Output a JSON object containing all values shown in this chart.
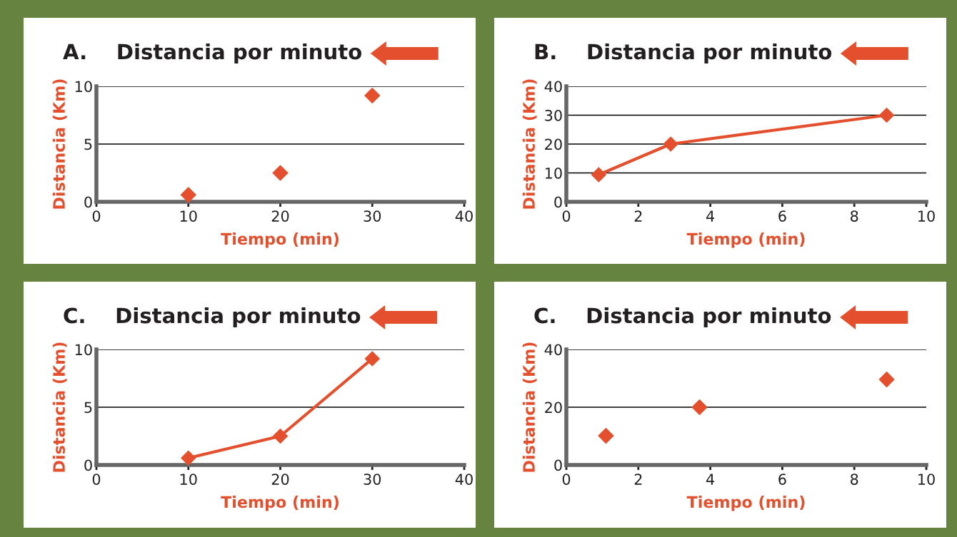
{
  "chart_data": [
    {
      "type": "scatter",
      "title": "A.    Distancia por minuto",
      "xlabel": "Tiempo (min)",
      "ylabel": "Distancia (Km)",
      "xlim": [
        0,
        40
      ],
      "ylim": [
        0,
        10
      ],
      "xticks": [
        0,
        10,
        20,
        30,
        40
      ],
      "yticks": [
        0,
        5,
        10
      ],
      "grid": "y",
      "marker": "diamond",
      "legend": false,
      "series": [
        {
          "color": "#e4502d",
          "x": [
            10,
            20,
            30
          ],
          "values": [
            0.6,
            2.5,
            9.2
          ]
        }
      ]
    },
    {
      "type": "line",
      "title": "B.    Distancia por minuto",
      "xlabel": "Tiempo (min)",
      "ylabel": "Distancia (Km)",
      "xlim": [
        0,
        10
      ],
      "ylim": [
        0,
        40
      ],
      "xticks": [
        0,
        2,
        4,
        6,
        8,
        10
      ],
      "yticks": [
        0,
        10,
        20,
        30,
        40
      ],
      "grid": "y",
      "marker": "diamond",
      "line_style": "solid",
      "legend": false,
      "series": [
        {
          "color": "#e4502d",
          "x": [
            0.9,
            2.9,
            8.9
          ],
          "values": [
            9.4,
            20,
            30
          ]
        }
      ]
    },
    {
      "type": "line",
      "title": "C.    Distancia por minuto",
      "xlabel": "Tiempo (min)",
      "ylabel": "Distancia (Km)",
      "xlim": [
        0,
        40
      ],
      "ylim": [
        0,
        10
      ],
      "xticks": [
        0,
        10,
        20,
        30,
        40
      ],
      "yticks": [
        0,
        5,
        10
      ],
      "grid": "y",
      "marker": "diamond",
      "line_style": "solid",
      "legend": false,
      "series": [
        {
          "color": "#e4502d",
          "x": [
            10,
            20,
            30
          ],
          "values": [
            0.6,
            2.5,
            9.2
          ]
        }
      ]
    },
    {
      "type": "scatter",
      "title": "C.    Distancia por minuto",
      "xlabel": "Tiempo (min)",
      "ylabel": "Distancia (Km)",
      "xlim": [
        0,
        10
      ],
      "ylim": [
        0,
        40
      ],
      "xticks": [
        0,
        2,
        4,
        6,
        8,
        10
      ],
      "yticks": [
        0,
        20,
        40
      ],
      "grid": "y",
      "marker": "diamond",
      "legend": false,
      "series": [
        {
          "color": "#e4502d",
          "x": [
            1.1,
            3.7,
            8.9
          ],
          "values": [
            10.1,
            20,
            29.6
          ]
        }
      ]
    }
  ]
}
